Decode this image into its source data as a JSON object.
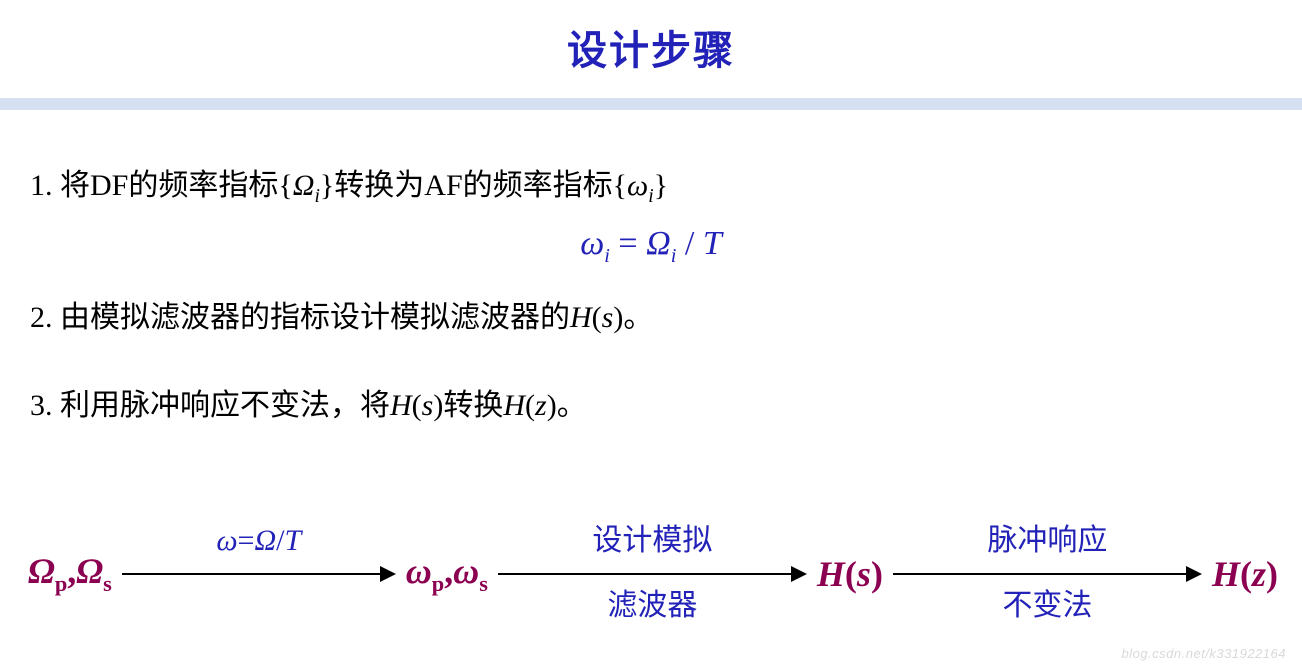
{
  "title": {
    "text": "设计步骤",
    "color": "#2222b8"
  },
  "divider_color": "#d6e0f2",
  "steps": {
    "s1": {
      "pre": "1. 将DF的频率指标{",
      "var1": "Ω",
      "var1_sub": "i",
      "mid": "}转换为AF的频率指标{",
      "var2": "ω",
      "var2_sub": "i",
      "post": "}"
    },
    "formula": {
      "lhs_sym": "ω",
      "lhs_sub": "i",
      "eq": " = ",
      "rhs_sym": "Ω",
      "rhs_sub": "i",
      "div": " / ",
      "T": "T",
      "color": "#2222b8"
    },
    "s2": {
      "pre": "2. 由模拟滤波器的指标设计模拟滤波器的",
      "H": "H",
      "paren_open": "(",
      "s": "s",
      "paren_close": ")",
      "post": "。"
    },
    "s3": {
      "pre": "3. 利用脉冲响应不变法，将",
      "H1": "H",
      "po1": "(",
      "s": "s",
      "pc1": ")",
      "mid": "转换",
      "H2": "H",
      "po2": "(",
      "z": "z",
      "pc2": ")",
      "post": "。"
    }
  },
  "flow": {
    "node1": {
      "Om": "Ω",
      "sub1": "p",
      "comma": ",",
      "Om2": "Ω",
      "sub2": "s",
      "color": "#8b0050"
    },
    "arrow1": {
      "top_omega": "ω",
      "top_eq": "=",
      "top_Omega": "Ω",
      "top_div": "/",
      "top_T": "T",
      "top_color": "#2222b8"
    },
    "node2": {
      "om": "ω",
      "sub1": "p",
      "comma": ",",
      "om2": "ω",
      "sub2": "s",
      "color": "#8b0050"
    },
    "arrow2": {
      "top": "设计模拟",
      "bot": "滤波器",
      "color": "#2222b8"
    },
    "node3": {
      "H": "H",
      "po": "(",
      "s": "s",
      "pc": ")",
      "color": "#8b0050"
    },
    "arrow3": {
      "top": "脉冲响应",
      "bot": "不变法",
      "color": "#2222b8"
    },
    "node4": {
      "H": "H",
      "po": "(",
      "z": "z",
      "pc": ")",
      "color": "#8b0050"
    }
  },
  "watermark": "blog.csdn.net/k331922164"
}
